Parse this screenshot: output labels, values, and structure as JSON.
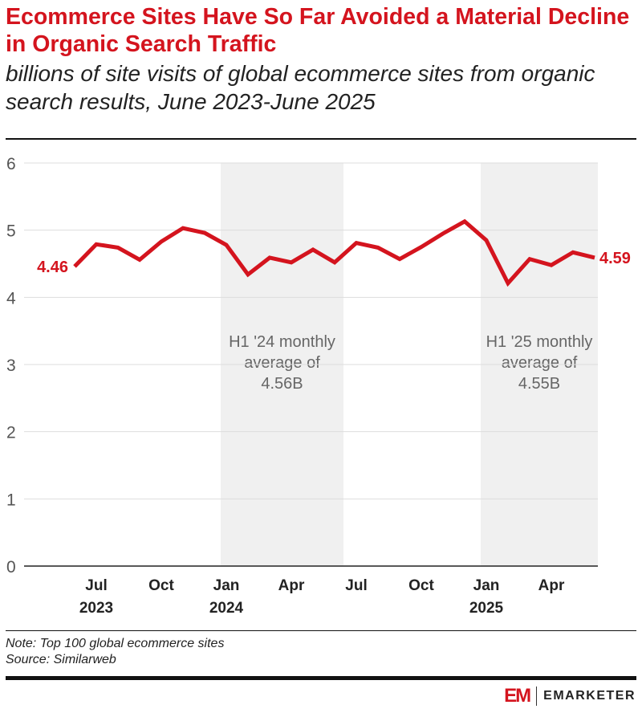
{
  "header": {
    "title": "Ecommerce Sites Have So Far Avoided a Material Decline in Organic Search Traffic",
    "subtitle": "billions of site visits of global ecommerce sites from organic search results, June 2023-June 2025"
  },
  "chart_data": {
    "type": "line",
    "title": "Ecommerce Sites Have So Far Avoided a Material Decline in Organic Search Traffic",
    "subtitle": "billions of site visits of global ecommerce sites from organic search results, June 2023-June 2025",
    "x": [
      "2023-06",
      "2023-07",
      "2023-08",
      "2023-09",
      "2023-10",
      "2023-11",
      "2023-12",
      "2024-01",
      "2024-02",
      "2024-03",
      "2024-04",
      "2024-05",
      "2024-06",
      "2024-07",
      "2024-08",
      "2024-09",
      "2024-10",
      "2024-11",
      "2024-12",
      "2025-01",
      "2025-02",
      "2025-03",
      "2025-04",
      "2025-05",
      "2025-06"
    ],
    "series": [
      {
        "values": [
          4.46,
          4.79,
          4.74,
          4.56,
          4.83,
          5.03,
          4.96,
          4.78,
          4.34,
          4.59,
          4.52,
          4.71,
          4.52,
          4.81,
          4.74,
          4.57,
          4.75,
          4.95,
          5.13,
          4.85,
          4.21,
          4.57,
          4.48,
          4.67,
          4.59
        ],
        "color": "#d4141e"
      }
    ],
    "data_labels": [
      {
        "index": 0,
        "text": "4.46"
      },
      {
        "index": 24,
        "text": "4.59"
      }
    ],
    "ylim": [
      0,
      6
    ],
    "yticks": [
      "0",
      "1",
      "2",
      "3",
      "4",
      "5",
      "6"
    ],
    "xticks": [
      {
        "index": 1,
        "label": "Jul",
        "year": "2023"
      },
      {
        "index": 4,
        "label": "Oct",
        "year": ""
      },
      {
        "index": 7,
        "label": "Jan",
        "year": "2024"
      },
      {
        "index": 10,
        "label": "Apr",
        "year": ""
      },
      {
        "index": 13,
        "label": "Jul",
        "year": ""
      },
      {
        "index": 16,
        "label": "Oct",
        "year": ""
      },
      {
        "index": 19,
        "label": "Jan",
        "year": "2025"
      },
      {
        "index": 22,
        "label": "Apr",
        "year": ""
      }
    ],
    "grid": true,
    "shaded_regions": [
      {
        "from": "2024-01",
        "to": "2024-06",
        "annotation": [
          "H1 '24 monthly",
          "average of",
          "4.56B"
        ]
      },
      {
        "from": "2025-01",
        "to": "2025-06",
        "annotation": [
          "H1 '25 monthly",
          "average of",
          "4.55B"
        ]
      }
    ]
  },
  "footer": {
    "note": "Note: Top 100 global ecommerce sites",
    "source": "Source: Similarweb",
    "logo_mark": "EM",
    "logo_word": "EMARKETER"
  }
}
